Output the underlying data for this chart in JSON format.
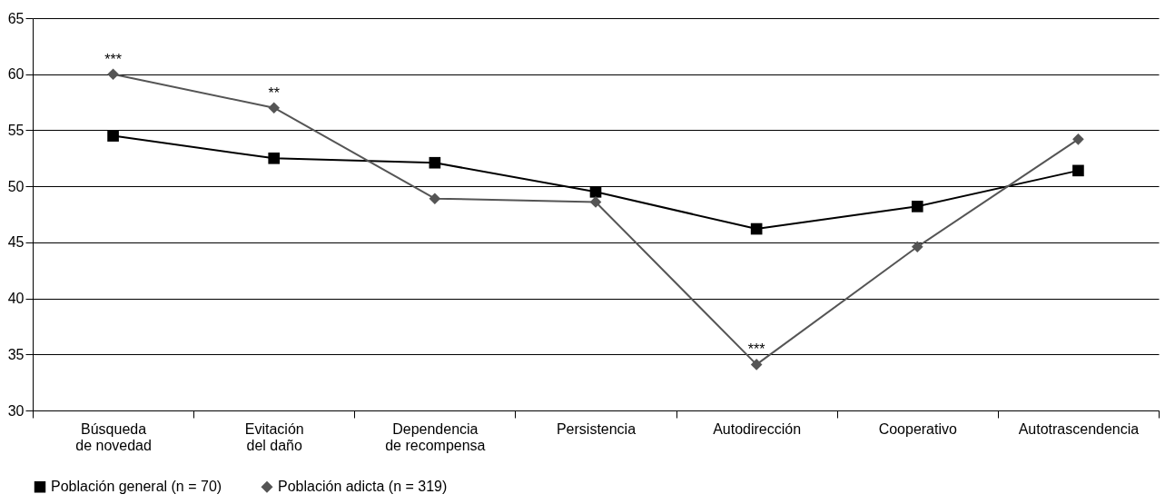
{
  "chart_data": {
    "type": "line",
    "categories": [
      "Búsqueda\nde novedad",
      "Evitación\ndel daño",
      "Dependencia\nde recompensa",
      "Persistencia",
      "Autodirección",
      "Cooperativo",
      "Autotrascendencia"
    ],
    "series": [
      {
        "name": "Población general (n = 70)",
        "color": "#000000",
        "marker": "square",
        "values": [
          54.5,
          52.5,
          52.1,
          49.5,
          46.2,
          48.2,
          51.4
        ]
      },
      {
        "name": "Población adicta (n = 319)",
        "color": "#555555",
        "marker": "diamond",
        "values": [
          60,
          57.0,
          48.9,
          48.6,
          34.1,
          44.6,
          54.2
        ]
      }
    ],
    "ylim": [
      30,
      65
    ],
    "yticks": [
      30,
      35,
      40,
      45,
      50,
      55,
      60,
      65
    ],
    "grid": "y",
    "legend": "bottom",
    "annotations": [
      {
        "text": "***",
        "x": "Búsqueda\nde novedad",
        "y": 60
      },
      {
        "text": "**",
        "x": "Evitación\ndel daño",
        "y": 57.0
      },
      {
        "text": "***",
        "x": "Autodirección",
        "y": 34.1
      }
    ]
  }
}
